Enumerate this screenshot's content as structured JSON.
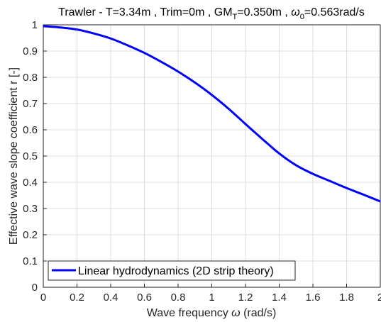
{
  "chart_data": {
    "type": "line",
    "title": "Trawler - T=3.34m , Trim=0m , GM",
    "title_sub": "T",
    "title_mid": "=0.350m , ",
    "title_omega": "ω",
    "title_omega_sub": "0",
    "title_end": "=0.563rad/s",
    "xlabel": "Wave frequency ",
    "xlabel_symbol": "ω",
    "xlabel_units": " (rad/s)",
    "ylabel": "Effective wave slope coefficient  r [-]",
    "xlim": [
      0,
      2
    ],
    "ylim": [
      0,
      1
    ],
    "xticks": [
      "0",
      "0.2",
      "0.4",
      "0.6",
      "0.8",
      "1",
      "1.2",
      "1.4",
      "1.6",
      "1.8",
      "2"
    ],
    "yticks": [
      "0",
      "0.1",
      "0.2",
      "0.3",
      "0.4",
      "0.5",
      "0.6",
      "0.7",
      "0.8",
      "0.9",
      "1"
    ],
    "grid": true,
    "legend_position": "bottom-left",
    "series": [
      {
        "name": "Linear hydrodynamics (2D strip theory)",
        "color": "#0000ff",
        "x": [
          0,
          0.1,
          0.2,
          0.3,
          0.4,
          0.5,
          0.6,
          0.7,
          0.8,
          0.9,
          1.0,
          1.1,
          1.2,
          1.3,
          1.4,
          1.5,
          1.6,
          1.7,
          1.8,
          1.9,
          2.0
        ],
        "y": [
          0.995,
          0.99,
          0.982,
          0.967,
          0.948,
          0.922,
          0.893,
          0.859,
          0.822,
          0.78,
          0.733,
          0.68,
          0.622,
          0.565,
          0.51,
          0.465,
          0.432,
          0.405,
          0.378,
          0.353,
          0.327
        ]
      }
    ]
  }
}
